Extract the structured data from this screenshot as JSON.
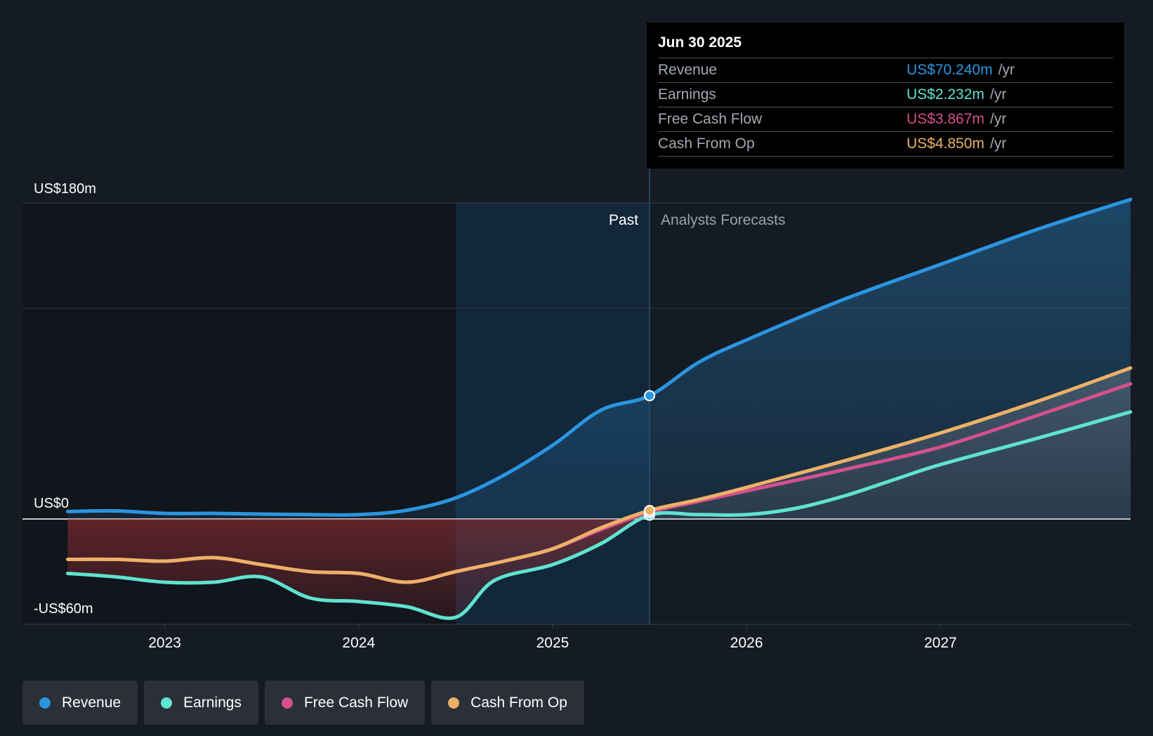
{
  "chart_data": {
    "type": "line",
    "title": "",
    "y_labels": {
      "top": "US$180m",
      "zero": "US$0",
      "bottom": "-US$60m"
    },
    "ylim": [
      -60,
      180
    ],
    "xlim": [
      2022.5,
      2027.98
    ],
    "x_ticks": [
      {
        "value": 2023,
        "label": "2023"
      },
      {
        "value": 2024,
        "label": "2024"
      },
      {
        "value": 2025,
        "label": "2025"
      },
      {
        "value": 2026,
        "label": "2026"
      },
      {
        "value": 2027,
        "label": "2027"
      }
    ],
    "regions": {
      "past_label": "Past",
      "forecast_label": "Analysts Forecasts",
      "divider_x": 2025.5,
      "highlight_start_x": 2024.5
    },
    "series": [
      {
        "name": "Revenue",
        "color": "#2b95e0",
        "points": [
          [
            2022.5,
            4.3
          ],
          [
            2022.75,
            4.6
          ],
          [
            2023,
            3.2
          ],
          [
            2023.25,
            3.2
          ],
          [
            2023.5,
            2.8
          ],
          [
            2023.75,
            2.5
          ],
          [
            2024,
            2.5
          ],
          [
            2024.25,
            5
          ],
          [
            2024.5,
            12
          ],
          [
            2024.75,
            25
          ],
          [
            2025,
            42
          ],
          [
            2025.25,
            62
          ],
          [
            2025.5,
            70.24
          ],
          [
            2025.75,
            89
          ],
          [
            2026,
            102
          ],
          [
            2026.5,
            125
          ],
          [
            2027,
            145
          ],
          [
            2027.5,
            165
          ],
          [
            2027.98,
            182
          ]
        ]
      },
      {
        "name": "Earnings",
        "color": "#5fe3cf",
        "points": [
          [
            2022.5,
            -31
          ],
          [
            2022.75,
            -33
          ],
          [
            2023,
            -36
          ],
          [
            2023.25,
            -36
          ],
          [
            2023.5,
            -33
          ],
          [
            2023.75,
            -45
          ],
          [
            2024,
            -47
          ],
          [
            2024.25,
            -50
          ],
          [
            2024.5,
            -56
          ],
          [
            2024.7,
            -35
          ],
          [
            2025,
            -26
          ],
          [
            2025.25,
            -14
          ],
          [
            2025.5,
            2.232
          ],
          [
            2025.75,
            2.5
          ],
          [
            2026,
            2.5
          ],
          [
            2026.25,
            6
          ],
          [
            2026.5,
            13
          ],
          [
            2026.75,
            22
          ],
          [
            2027,
            31
          ],
          [
            2027.5,
            46
          ],
          [
            2027.98,
            61
          ]
        ]
      },
      {
        "name": "Free Cash Flow",
        "color": "#d4508c",
        "points": [
          [
            2022.5,
            -23
          ],
          [
            2022.75,
            -23
          ],
          [
            2023,
            -24
          ],
          [
            2023.25,
            -22
          ],
          [
            2023.5,
            -26
          ],
          [
            2023.75,
            -30
          ],
          [
            2024,
            -31
          ],
          [
            2024.25,
            -36
          ],
          [
            2024.5,
            -30
          ],
          [
            2024.75,
            -24
          ],
          [
            2025,
            -17
          ],
          [
            2025.25,
            -6
          ],
          [
            2025.5,
            3.867
          ],
          [
            2025.75,
            10
          ],
          [
            2026,
            16
          ],
          [
            2026.5,
            28
          ],
          [
            2027,
            41
          ],
          [
            2027.5,
            59
          ],
          [
            2027.98,
            77
          ]
        ]
      },
      {
        "name": "Cash From Op",
        "color": "#ecb167",
        "points": [
          [
            2022.5,
            -23
          ],
          [
            2022.75,
            -23
          ],
          [
            2023,
            -24
          ],
          [
            2023.25,
            -22
          ],
          [
            2023.5,
            -26
          ],
          [
            2023.75,
            -30
          ],
          [
            2024,
            -31
          ],
          [
            2024.25,
            -36
          ],
          [
            2024.5,
            -30
          ],
          [
            2024.75,
            -24
          ],
          [
            2025,
            -17
          ],
          [
            2025.25,
            -5
          ],
          [
            2025.5,
            4.85
          ],
          [
            2025.75,
            11
          ],
          [
            2026,
            18
          ],
          [
            2026.5,
            33
          ],
          [
            2027,
            49
          ],
          [
            2027.5,
            67
          ],
          [
            2027.98,
            86
          ]
        ]
      }
    ],
    "highlight_x": 2025.5
  },
  "tooltip": {
    "date": "Jun 30 2025",
    "rows": [
      {
        "label": "Revenue",
        "value": "US$70.240m",
        "unit": "/yr",
        "color": "#2b95e0"
      },
      {
        "label": "Earnings",
        "value": "US$2.232m",
        "unit": "/yr",
        "color": "#5fe3cf"
      },
      {
        "label": "Free Cash Flow",
        "value": "US$3.867m",
        "unit": "/yr",
        "color": "#d4508c"
      },
      {
        "label": "Cash From Op",
        "value": "US$4.850m",
        "unit": "/yr",
        "color": "#ecb167"
      }
    ]
  },
  "legend": [
    {
      "label": "Revenue",
      "color": "#2b95e0"
    },
    {
      "label": "Earnings",
      "color": "#5fe3cf"
    },
    {
      "label": "Free Cash Flow",
      "color": "#d4508c"
    },
    {
      "label": "Cash From Op",
      "color": "#ecb167"
    }
  ]
}
